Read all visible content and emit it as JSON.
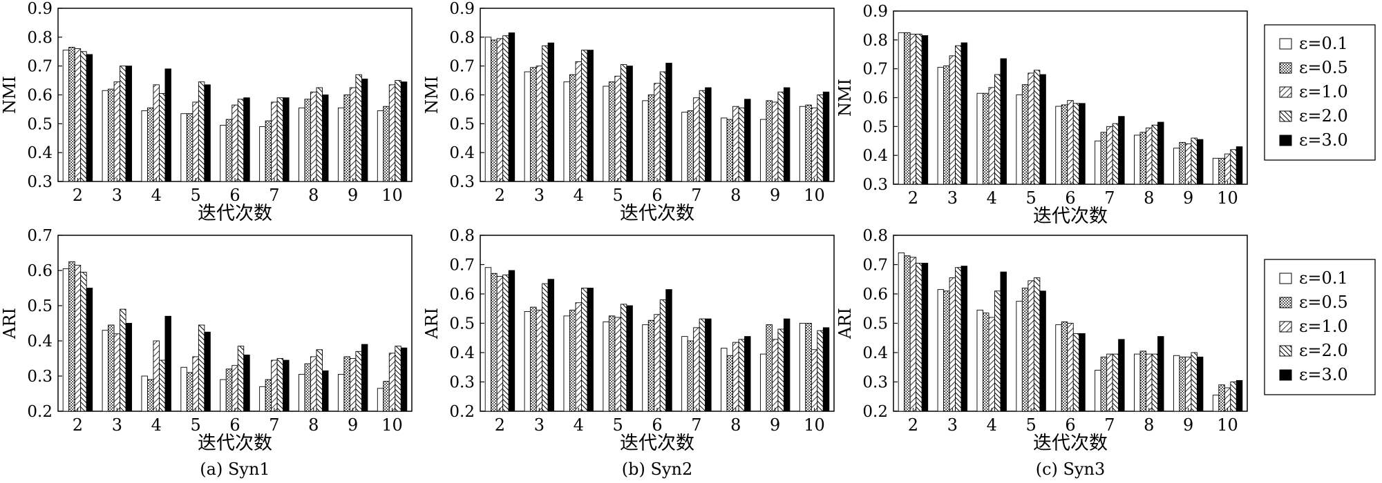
{
  "legend_labels": [
    "ε=0.1",
    "ε=0.5",
    "ε=1.0",
    "ε=2.0",
    "ε=3.0"
  ],
  "colors": {
    "axis": "#000000",
    "bar_fill": "#ffffff",
    "bar_dark": "#000000"
  },
  "chart_data": [
    {
      "type": "bar",
      "panel": "Syn1-NMI",
      "ylabel": "NMI",
      "xlabel": "迭代次数",
      "caption": "",
      "categories": [
        "2",
        "3",
        "4",
        "5",
        "6",
        "7",
        "8",
        "9",
        "10"
      ],
      "ylim": [
        0.3,
        0.9
      ],
      "yticks": [
        "0.3",
        "0.4",
        "0.5",
        "0.6",
        "0.7",
        "0.8",
        "0.9"
      ],
      "series": [
        {
          "name": "ε=0.1",
          "values": [
            0.755,
            0.615,
            0.545,
            0.535,
            0.495,
            0.49,
            0.555,
            0.555,
            0.545
          ]
        },
        {
          "name": "ε=0.5",
          "values": [
            0.765,
            0.62,
            0.555,
            0.535,
            0.515,
            0.51,
            0.585,
            0.6,
            0.56
          ]
        },
        {
          "name": "ε=1.0",
          "values": [
            0.76,
            0.645,
            0.635,
            0.575,
            0.565,
            0.575,
            0.61,
            0.625,
            0.635
          ]
        },
        {
          "name": "ε=2.0",
          "values": [
            0.75,
            0.7,
            0.605,
            0.645,
            0.585,
            0.59,
            0.625,
            0.67,
            0.65
          ]
        },
        {
          "name": "ε=3.0",
          "values": [
            0.74,
            0.7,
            0.69,
            0.635,
            0.59,
            0.59,
            0.6,
            0.655,
            0.645
          ]
        }
      ]
    },
    {
      "type": "bar",
      "panel": "Syn2-NMI",
      "ylabel": "NMI",
      "xlabel": "迭代次数",
      "caption": "",
      "categories": [
        "2",
        "3",
        "4",
        "5",
        "6",
        "7",
        "8",
        "9",
        "10"
      ],
      "ylim": [
        0.3,
        0.9
      ],
      "yticks": [
        "0.3",
        "0.4",
        "0.5",
        "0.6",
        "0.7",
        "0.8",
        "0.9"
      ],
      "series": [
        {
          "name": "ε=0.1",
          "values": [
            0.8,
            0.68,
            0.645,
            0.63,
            0.58,
            0.54,
            0.52,
            0.515,
            0.56
          ]
        },
        {
          "name": "ε=0.5",
          "values": [
            0.79,
            0.695,
            0.67,
            0.645,
            0.6,
            0.545,
            0.515,
            0.58,
            0.565
          ]
        },
        {
          "name": "ε=1.0",
          "values": [
            0.795,
            0.7,
            0.715,
            0.665,
            0.64,
            0.59,
            0.56,
            0.575,
            0.555
          ]
        },
        {
          "name": "ε=2.0",
          "values": [
            0.805,
            0.77,
            0.755,
            0.705,
            0.68,
            0.615,
            0.555,
            0.61,
            0.6
          ]
        },
        {
          "name": "ε=3.0",
          "values": [
            0.815,
            0.78,
            0.755,
            0.7,
            0.71,
            0.625,
            0.585,
            0.625,
            0.61
          ]
        }
      ]
    },
    {
      "type": "bar",
      "panel": "Syn3-NMI",
      "ylabel": "NMI",
      "xlabel": "迭代次数",
      "caption": "",
      "categories": [
        "2",
        "3",
        "4",
        "5",
        "6",
        "7",
        "8",
        "9",
        "10"
      ],
      "ylim": [
        0.3,
        0.9
      ],
      "yticks": [
        "0.3",
        "0.4",
        "0.5",
        "0.6",
        "0.7",
        "0.8",
        "0.9"
      ],
      "series": [
        {
          "name": "ε=0.1",
          "values": [
            0.825,
            0.705,
            0.615,
            0.61,
            0.57,
            0.45,
            0.47,
            0.425,
            0.39
          ]
        },
        {
          "name": "ε=0.5",
          "values": [
            0.825,
            0.71,
            0.615,
            0.645,
            0.575,
            0.48,
            0.48,
            0.445,
            0.39
          ]
        },
        {
          "name": "ε=1.0",
          "values": [
            0.82,
            0.745,
            0.635,
            0.685,
            0.59,
            0.5,
            0.495,
            0.44,
            0.405
          ]
        },
        {
          "name": "ε=2.0",
          "values": [
            0.82,
            0.78,
            0.68,
            0.695,
            0.58,
            0.51,
            0.505,
            0.46,
            0.42
          ]
        },
        {
          "name": "ε=3.0",
          "values": [
            0.815,
            0.79,
            0.735,
            0.68,
            0.58,
            0.535,
            0.515,
            0.455,
            0.43
          ]
        }
      ]
    },
    {
      "type": "bar",
      "panel": "Syn1-ARI",
      "ylabel": "ARI",
      "xlabel": "迭代次数",
      "caption": "(a) Syn1",
      "categories": [
        "2",
        "3",
        "4",
        "5",
        "6",
        "7",
        "8",
        "9",
        "10"
      ],
      "ylim": [
        0.2,
        0.7
      ],
      "yticks": [
        "0.2",
        "0.3",
        "0.4",
        "0.5",
        "0.6",
        "0.7"
      ],
      "series": [
        {
          "name": "ε=0.1",
          "values": [
            0.605,
            0.43,
            0.3,
            0.325,
            0.29,
            0.27,
            0.305,
            0.305,
            0.265
          ]
        },
        {
          "name": "ε=0.5",
          "values": [
            0.625,
            0.445,
            0.29,
            0.31,
            0.32,
            0.29,
            0.335,
            0.355,
            0.285
          ]
        },
        {
          "name": "ε=1.0",
          "values": [
            0.615,
            0.42,
            0.4,
            0.355,
            0.33,
            0.345,
            0.355,
            0.35,
            0.365
          ]
        },
        {
          "name": "ε=2.0",
          "values": [
            0.595,
            0.49,
            0.345,
            0.445,
            0.385,
            0.35,
            0.375,
            0.37,
            0.385
          ]
        },
        {
          "name": "ε=3.0",
          "values": [
            0.55,
            0.45,
            0.47,
            0.425,
            0.36,
            0.345,
            0.315,
            0.39,
            0.38
          ]
        }
      ]
    },
    {
      "type": "bar",
      "panel": "Syn2-ARI",
      "ylabel": "ARI",
      "xlabel": "迭代次数",
      "caption": "(b) Syn2",
      "categories": [
        "2",
        "3",
        "4",
        "5",
        "6",
        "7",
        "8",
        "9",
        "10"
      ],
      "ylim": [
        0.2,
        0.8
      ],
      "yticks": [
        "0.2",
        "0.3",
        "0.4",
        "0.5",
        "0.6",
        "0.7",
        "0.8"
      ],
      "series": [
        {
          "name": "ε=0.1",
          "values": [
            0.69,
            0.54,
            0.525,
            0.505,
            0.495,
            0.455,
            0.415,
            0.395,
            0.5
          ]
        },
        {
          "name": "ε=0.5",
          "values": [
            0.67,
            0.555,
            0.545,
            0.525,
            0.51,
            0.44,
            0.39,
            0.495,
            0.5
          ]
        },
        {
          "name": "ε=1.0",
          "values": [
            0.66,
            0.545,
            0.57,
            0.52,
            0.53,
            0.485,
            0.435,
            0.445,
            0.41
          ]
        },
        {
          "name": "ε=2.0",
          "values": [
            0.665,
            0.635,
            0.62,
            0.565,
            0.58,
            0.515,
            0.445,
            0.48,
            0.475
          ]
        },
        {
          "name": "ε=3.0",
          "values": [
            0.68,
            0.65,
            0.62,
            0.56,
            0.615,
            0.515,
            0.455,
            0.515,
            0.485
          ]
        }
      ]
    },
    {
      "type": "bar",
      "panel": "Syn3-ARI",
      "ylabel": "ARI",
      "xlabel": "迭代次数",
      "caption": "(c) Syn3",
      "categories": [
        "2",
        "3",
        "4",
        "5",
        "6",
        "7",
        "8",
        "9",
        "10"
      ],
      "ylim": [
        0.2,
        0.8
      ],
      "yticks": [
        "0.2",
        "0.3",
        "0.4",
        "0.5",
        "0.6",
        "0.7",
        "0.8"
      ],
      "series": [
        {
          "name": "ε=0.1",
          "values": [
            0.74,
            0.615,
            0.545,
            0.575,
            0.495,
            0.34,
            0.395,
            0.39,
            0.255
          ]
        },
        {
          "name": "ε=0.5",
          "values": [
            0.73,
            0.61,
            0.535,
            0.62,
            0.505,
            0.385,
            0.405,
            0.385,
            0.29
          ]
        },
        {
          "name": "ε=1.0",
          "values": [
            0.725,
            0.655,
            0.52,
            0.645,
            0.5,
            0.395,
            0.395,
            0.385,
            0.28
          ]
        },
        {
          "name": "ε=2.0",
          "values": [
            0.705,
            0.69,
            0.61,
            0.655,
            0.465,
            0.395,
            0.395,
            0.4,
            0.3
          ]
        },
        {
          "name": "ε=3.0",
          "values": [
            0.705,
            0.695,
            0.675,
            0.61,
            0.465,
            0.445,
            0.455,
            0.385,
            0.305
          ]
        }
      ]
    }
  ]
}
